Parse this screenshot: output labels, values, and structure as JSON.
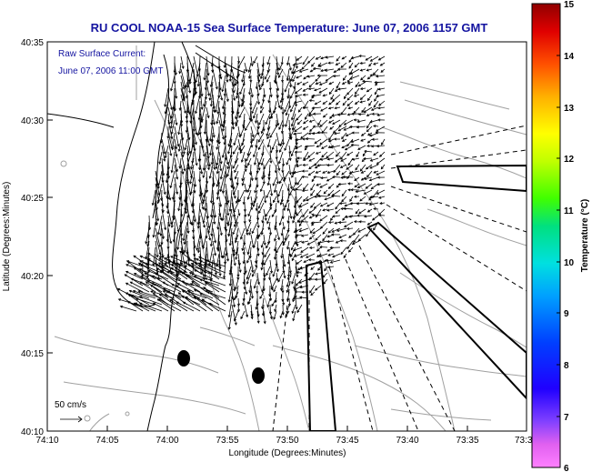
{
  "title": "RU COOL  NOAA-15  Sea Surface Temperature:  June 07, 2006 1157 GMT",
  "overlay": {
    "line1": "Raw Surface Current:",
    "line2": "June 07, 2006 11:00 GMT"
  },
  "scale_label": "50 cm/s",
  "axes": {
    "xlabel": "Longitude (Degrees:Minutes)",
    "ylabel": "Latitude (Degrees:Minutes)",
    "xticks": [
      "74:10",
      "74:05",
      "74:00",
      "73:55",
      "73:50",
      "73:45",
      "73:40",
      "73:35",
      "73:3"
    ],
    "yticks": [
      "40:35",
      "40:30",
      "40:25",
      "40:20",
      "40:15",
      "40:10"
    ]
  },
  "colorbar": {
    "label": "Temperature (°C)",
    "ticks": [
      "15",
      "14",
      "13",
      "12",
      "11",
      "10",
      "9",
      "8",
      "7",
      "6"
    ]
  },
  "colors": {
    "title": "#1414a0",
    "coast": "#000000",
    "bathymetry": "#a0a0a0"
  }
}
